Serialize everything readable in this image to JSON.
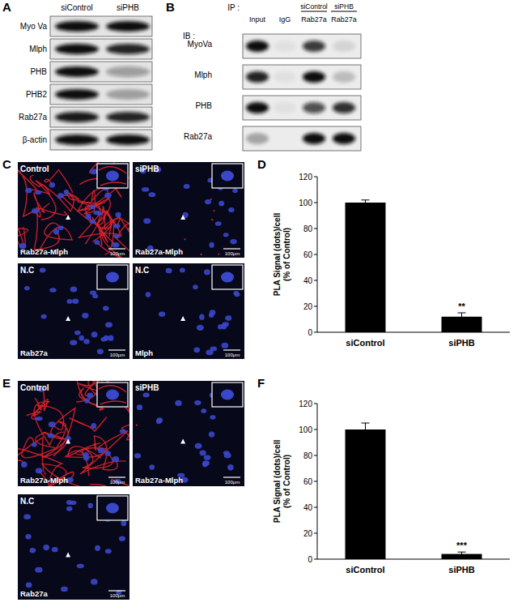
{
  "panels": {
    "A": {
      "label": "A",
      "columns": [
        "siControl",
        "siPHB"
      ],
      "rows": [
        "Myo Va",
        "Mlph",
        "PHB",
        "PHB2",
        "Rab27a",
        "β-actin"
      ],
      "bands": [
        [
          1,
          1
        ],
        [
          1,
          0.9
        ],
        [
          1,
          0.35
        ],
        [
          1,
          0.3
        ],
        [
          0.95,
          0.9
        ],
        [
          1,
          1
        ]
      ]
    },
    "B": {
      "label": "B",
      "ip_label": "IP :",
      "ib_label": "IB :",
      "columns": [
        {
          "name": "Input"
        },
        {
          "name": "IgG"
        },
        {
          "name": "Rab27a",
          "group": "siControl"
        },
        {
          "name": "Rab27a",
          "group": "siPHB"
        }
      ],
      "rows": [
        "MyoVa",
        "Mlph",
        "PHB",
        "Rab27a"
      ],
      "bands": [
        [
          1,
          0.05,
          0.8,
          0.1
        ],
        [
          0.9,
          0.05,
          1,
          0.2
        ],
        [
          1,
          0.05,
          0.7,
          0.85
        ],
        [
          0.3,
          0,
          1,
          1
        ]
      ]
    },
    "C": {
      "label": "C",
      "scale_bar": "100μm",
      "images": [
        {
          "condition": "Control",
          "probe": "Rab27a-Mlph",
          "signal": 1
        },
        {
          "condition": "siPHB",
          "probe": "Rab27a-Mlph",
          "signal": 0.12
        },
        {
          "condition": "N.C",
          "probe": "Rab27a",
          "signal": 0
        },
        {
          "condition": "N.C",
          "probe": "Mlph",
          "signal": 0
        }
      ]
    },
    "D": {
      "label": "D"
    },
    "E": {
      "label": "E",
      "scale_bar": "100μm",
      "images": [
        {
          "condition": "Control",
          "probe": "Rab27a-Mlph",
          "signal": 1
        },
        {
          "condition": "siPHB",
          "probe": "Rab27a-Mlph",
          "signal": 0.04
        },
        {
          "condition": "N.C",
          "probe": "Rab27a",
          "signal": 0
        }
      ]
    },
    "F": {
      "label": "F"
    }
  },
  "chart_data": [
    {
      "type": "bar",
      "y_label": [
        "PLA Signal (dots)/cell",
        "(% of Control)"
      ],
      "categories": [
        "siControl",
        "siPHB"
      ],
      "values": [
        100,
        12
      ],
      "errors": [
        2,
        3
      ],
      "significance": [
        null,
        "**"
      ],
      "color": "#000000",
      "ylim": [
        0,
        120
      ],
      "yticks": [
        0,
        20,
        40,
        60,
        80,
        100,
        120
      ]
    },
    {
      "type": "bar",
      "y_label": [
        "PLA Signal (dots)/cell",
        "(% of Control)"
      ],
      "categories": [
        "siControl",
        "siPHB"
      ],
      "values": [
        100,
        4
      ],
      "errors": [
        5,
        1.5
      ],
      "significance": [
        null,
        "***"
      ],
      "color": "#000000",
      "ylim": [
        0,
        120
      ],
      "yticks": [
        0,
        20,
        40,
        60,
        80,
        100,
        120
      ]
    }
  ]
}
